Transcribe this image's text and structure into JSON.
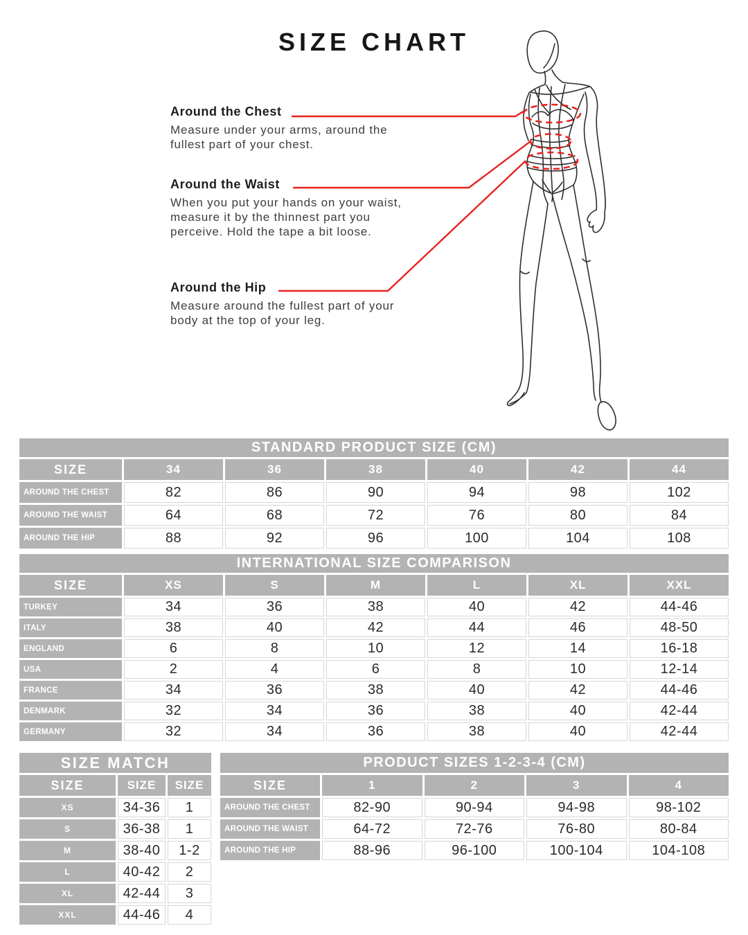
{
  "page": {
    "title": "SIZE CHART"
  },
  "annotations": [
    {
      "heading": "Around the Chest",
      "description_lines": [
        "Measure under your arms, around the",
        "fullest part of your chest."
      ]
    },
    {
      "heading": "Around the Waist",
      "description_lines": [
        "When you put your hands on your waist,",
        "measure it by the thinnest part you",
        "perceive. Hold the tape a bit loose."
      ]
    },
    {
      "heading": "Around the Hip",
      "description_lines": [
        "Measure around the fullest part of your",
        "body at the top of your leg."
      ]
    }
  ],
  "figure": {
    "description": "fashion-croquis-line-drawing with dashed measurement ellipses at chest, waist and hip"
  },
  "tables": {
    "standard": {
      "title": "STANDARD PRODUCT SIZE (CM)",
      "header": [
        "SIZE",
        "34",
        "36",
        "38",
        "40",
        "42",
        "44"
      ],
      "rows": [
        {
          "label": "AROUND THE CHEST",
          "values": [
            "82",
            "86",
            "90",
            "94",
            "98",
            "102"
          ]
        },
        {
          "label": "AROUND THE WAIST",
          "values": [
            "64",
            "68",
            "72",
            "76",
            "80",
            "84"
          ]
        },
        {
          "label": "AROUND THE HIP",
          "values": [
            "88",
            "92",
            "96",
            "100",
            "104",
            "108"
          ]
        }
      ]
    },
    "international": {
      "title": "INTERNATIONAL SIZE COMPARISON",
      "header": [
        "SIZE",
        "XS",
        "S",
        "M",
        "L",
        "XL",
        "XXL"
      ],
      "rows": [
        {
          "label": "TURKEY",
          "values": [
            "34",
            "36",
            "38",
            "40",
            "42",
            "44-46"
          ]
        },
        {
          "label": "ITALY",
          "values": [
            "38",
            "40",
            "42",
            "44",
            "46",
            "48-50"
          ]
        },
        {
          "label": "ENGLAND",
          "values": [
            "6",
            "8",
            "10",
            "12",
            "14",
            "16-18"
          ]
        },
        {
          "label": "USA",
          "values": [
            "2",
            "4",
            "6",
            "8",
            "10",
            "12-14"
          ]
        },
        {
          "label": "FRANCE",
          "values": [
            "34",
            "36",
            "38",
            "40",
            "42",
            "44-46"
          ]
        },
        {
          "label": "DENMARK",
          "values": [
            "32",
            "34",
            "36",
            "38",
            "40",
            "42-44"
          ]
        },
        {
          "label": "GERMANY",
          "values": [
            "32",
            "34",
            "36",
            "38",
            "40",
            "42-44"
          ]
        }
      ]
    },
    "size_match": {
      "title": "SIZE MATCH",
      "header": [
        "SIZE",
        "SIZE",
        "SIZE"
      ],
      "rows": [
        {
          "label": "XS",
          "values": [
            "34-36",
            "1"
          ]
        },
        {
          "label": "S",
          "values": [
            "36-38",
            "1"
          ]
        },
        {
          "label": "M",
          "values": [
            "38-40",
            "1-2"
          ]
        },
        {
          "label": "L",
          "values": [
            "40-42",
            "2"
          ]
        },
        {
          "label": "XL",
          "values": [
            "42-44",
            "3"
          ]
        },
        {
          "label": "XXL",
          "values": [
            "44-46",
            "4"
          ]
        }
      ]
    },
    "product_sizes": {
      "title": "PRODUCT SIZES 1-2-3-4 (CM)",
      "header": [
        "SIZE",
        "1",
        "2",
        "3",
        "4"
      ],
      "rows": [
        {
          "label": "AROUND THE CHEST",
          "values": [
            "82-90",
            "90-94",
            "94-98",
            "98-102"
          ]
        },
        {
          "label": "AROUND THE WAIST",
          "values": [
            "64-72",
            "72-76",
            "76-80",
            "80-84"
          ]
        },
        {
          "label": "AROUND THE HIP",
          "values": [
            "88-96",
            "96-100",
            "100-104",
            "104-108"
          ]
        }
      ]
    }
  },
  "colors": {
    "accent_red": "#e8231f",
    "table_gray": "#b3b3b3",
    "cell_border": "#d6d6d6",
    "text_dark": "#2a2a2a"
  }
}
